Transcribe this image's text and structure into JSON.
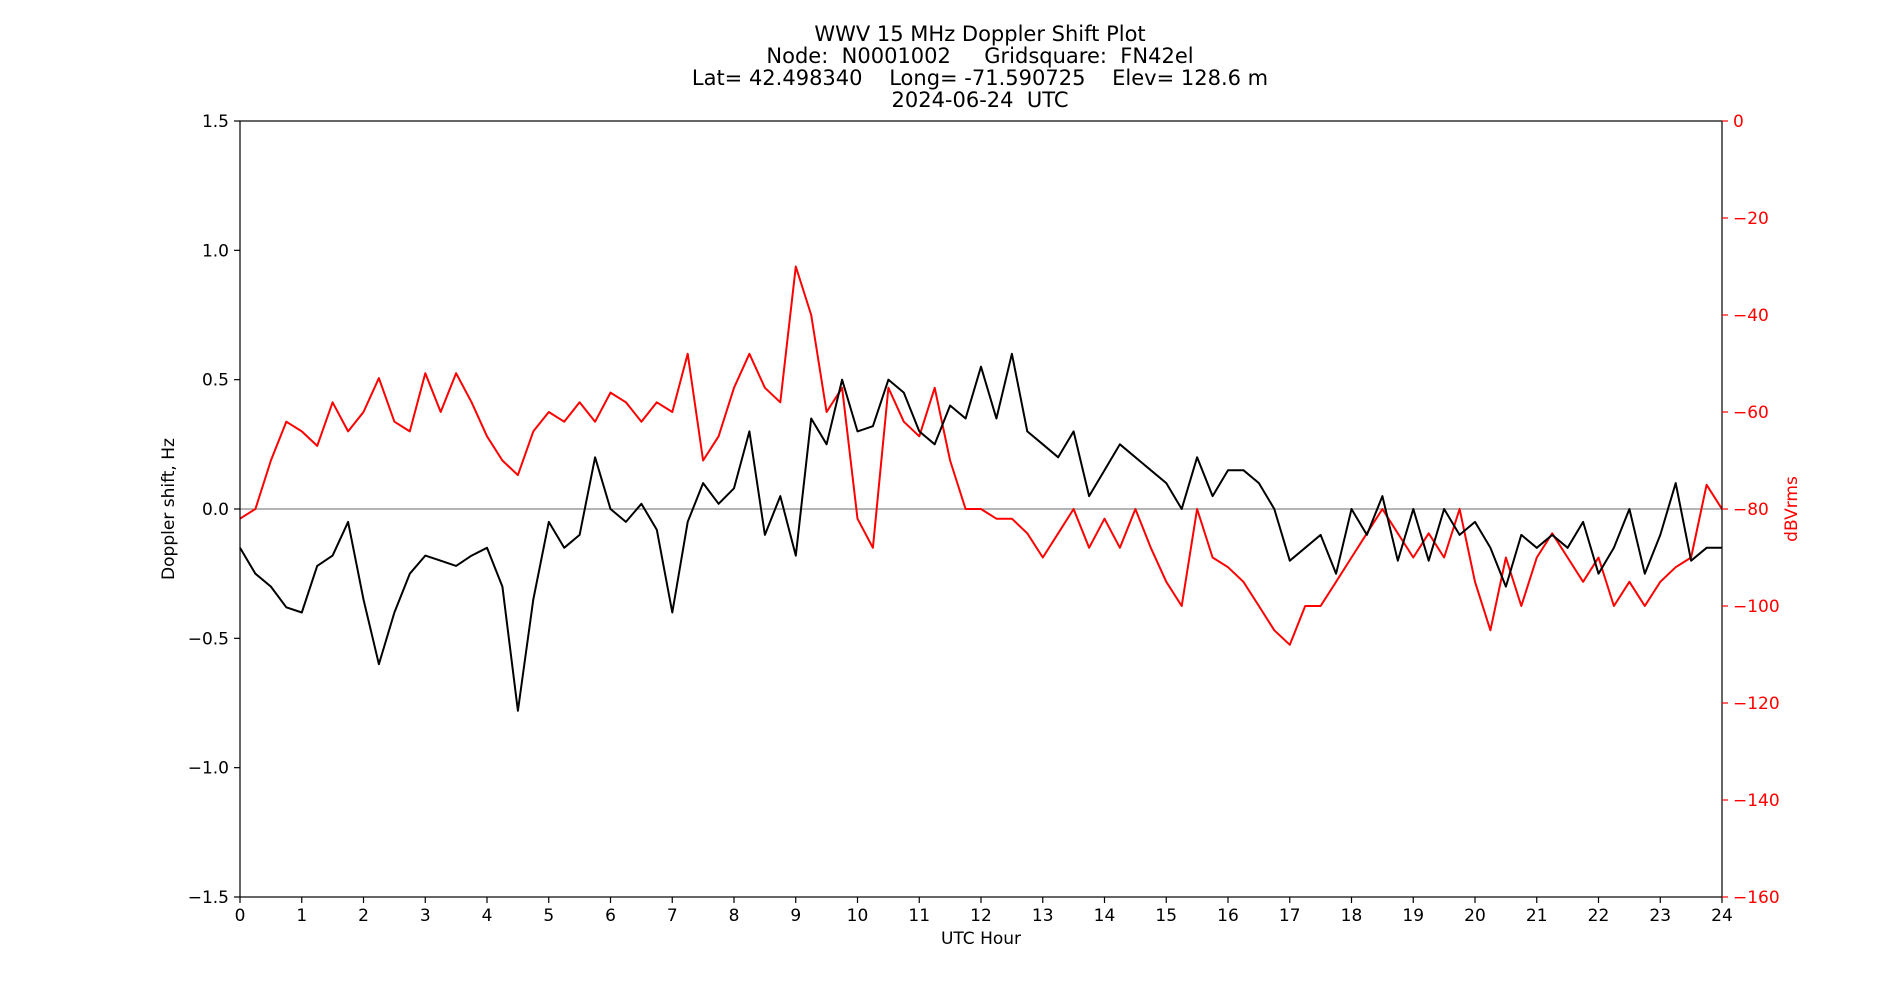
{
  "chart_data": {
    "type": "line",
    "title_lines": [
      "WWV 15 MHz Doppler Shift Plot",
      "Node:  N0001002     Gridsquare:  FN42el",
      "Lat= 42.498340    Long= -71.590725    Elev= 128.6 m",
      "2024-06-24  UTC"
    ],
    "xlabel": "UTC Hour",
    "ylabel_left": "Doppler shift, Hz",
    "ylabel_right": "dBVrms",
    "xlim": [
      0,
      24
    ],
    "ylim_left": [
      -1.5,
      1.5
    ],
    "ylim_right": [
      -160,
      0
    ],
    "x_ticks": [
      "0",
      "1",
      "2",
      "3",
      "4",
      "5",
      "6",
      "7",
      "8",
      "9",
      "10",
      "11",
      "12",
      "13",
      "14",
      "15",
      "16",
      "17",
      "18",
      "19",
      "20",
      "21",
      "22",
      "23",
      "24"
    ],
    "y_left_ticks": [
      "−1.5",
      "−1.0",
      "−0.5",
      "0.0",
      "0.5",
      "1.0",
      "1.5"
    ],
    "y_right_ticks": [
      "−160",
      "−140",
      "−120",
      "−100",
      "−80",
      "−60",
      "−40",
      "−20",
      "0"
    ],
    "grid": false,
    "zero_line": 0,
    "colors": {
      "doppler": "#000000",
      "power": "#ff0000",
      "zero_line": "#888888"
    },
    "series": [
      {
        "axis": "left",
        "color": "#000000",
        "x": [
          0,
          0.25,
          0.5,
          0.75,
          1,
          1.25,
          1.5,
          1.75,
          2,
          2.25,
          2.5,
          2.75,
          3,
          3.25,
          3.5,
          3.75,
          4,
          4.25,
          4.5,
          4.75,
          5,
          5.25,
          5.5,
          5.75,
          6,
          6.25,
          6.5,
          6.75,
          7,
          7.25,
          7.5,
          7.75,
          8,
          8.25,
          8.5,
          8.75,
          9,
          9.25,
          9.5,
          9.75,
          10,
          10.25,
          10.5,
          10.75,
          11,
          11.25,
          11.5,
          11.75,
          12,
          12.25,
          12.5,
          12.75,
          13,
          13.25,
          13.5,
          13.75,
          14,
          14.25,
          14.5,
          14.75,
          15,
          15.25,
          15.5,
          15.75,
          16,
          16.25,
          16.5,
          16.75,
          17,
          17.25,
          17.5,
          17.75,
          18,
          18.25,
          18.5,
          18.75,
          19,
          19.25,
          19.5,
          19.75,
          20,
          20.25,
          20.5,
          20.75,
          21,
          21.25,
          21.5,
          21.75,
          22,
          22.25,
          22.5,
          22.75,
          23,
          23.25,
          23.5,
          23.75,
          24
        ],
        "values": [
          -0.15,
          -0.25,
          -0.3,
          -0.38,
          -0.4,
          -0.22,
          -0.18,
          -0.05,
          -0.35,
          -0.6,
          -0.4,
          -0.25,
          -0.18,
          -0.2,
          -0.22,
          -0.18,
          -0.15,
          -0.3,
          -0.78,
          -0.35,
          -0.05,
          -0.15,
          -0.1,
          0.2,
          0.0,
          -0.05,
          0.02,
          -0.08,
          -0.4,
          -0.05,
          0.1,
          0.02,
          0.08,
          0.3,
          -0.1,
          0.05,
          -0.18,
          0.35,
          0.25,
          0.5,
          0.3,
          0.32,
          0.5,
          0.45,
          0.3,
          0.25,
          0.4,
          0.35,
          0.55,
          0.35,
          0.6,
          0.3,
          0.25,
          0.2,
          0.3,
          0.05,
          0.15,
          0.25,
          0.2,
          0.15,
          0.1,
          0.0,
          0.2,
          0.05,
          0.15,
          0.15,
          0.1,
          0.0,
          -0.2,
          -0.15,
          -0.1,
          -0.25,
          0.0,
          -0.1,
          0.05,
          -0.2,
          0.0,
          -0.2,
          0.0,
          -0.1,
          -0.05,
          -0.15,
          -0.3,
          -0.1,
          -0.15,
          -0.1,
          -0.15,
          -0.05,
          -0.25,
          -0.15,
          0.0,
          -0.25,
          -0.1,
          0.1,
          -0.2,
          -0.15,
          -0.15
        ]
      },
      {
        "axis": "right",
        "color": "#ff0000",
        "x": [
          0,
          0.25,
          0.5,
          0.75,
          1,
          1.25,
          1.5,
          1.75,
          2,
          2.25,
          2.5,
          2.75,
          3,
          3.25,
          3.5,
          3.75,
          4,
          4.25,
          4.5,
          4.75,
          5,
          5.25,
          5.5,
          5.75,
          6,
          6.25,
          6.5,
          6.75,
          7,
          7.25,
          7.5,
          7.75,
          8,
          8.25,
          8.5,
          8.75,
          9,
          9.25,
          9.5,
          9.75,
          10,
          10.25,
          10.5,
          10.75,
          11,
          11.25,
          11.5,
          11.75,
          12,
          12.25,
          12.5,
          12.75,
          13,
          13.25,
          13.5,
          13.75,
          14,
          14.25,
          14.5,
          14.75,
          15,
          15.25,
          15.5,
          15.75,
          16,
          16.25,
          16.5,
          16.75,
          17,
          17.25,
          17.5,
          17.75,
          18,
          18.25,
          18.5,
          18.75,
          19,
          19.25,
          19.5,
          19.75,
          20,
          20.25,
          20.5,
          20.75,
          21,
          21.25,
          21.5,
          21.75,
          22,
          22.25,
          22.5,
          22.75,
          23,
          23.25,
          23.5,
          23.75,
          24
        ],
        "values": [
          -82,
          -80,
          -70,
          -62,
          -64,
          -67,
          -58,
          -64,
          -60,
          -53,
          -62,
          -64,
          -52,
          -60,
          -52,
          -58,
          -65,
          -70,
          -73,
          -64,
          -60,
          -62,
          -58,
          -62,
          -56,
          -58,
          -62,
          -58,
          -60,
          -48,
          -70,
          -65,
          -55,
          -48,
          -55,
          -58,
          -30,
          -40,
          -60,
          -55,
          -82,
          -88,
          -55,
          -62,
          -65,
          -55,
          -70,
          -80,
          -80,
          -82,
          -82,
          -85,
          -90,
          -85,
          -80,
          -88,
          -82,
          -88,
          -80,
          -88,
          -95,
          -100,
          -80,
          -90,
          -92,
          -95,
          -100,
          -105,
          -108,
          -100,
          -100,
          -95,
          -90,
          -85,
          -80,
          -85,
          -90,
          -85,
          -90,
          -80,
          -95,
          -105,
          -90,
          -100,
          -90,
          -85,
          -90,
          -95,
          -90,
          -100,
          -95,
          -100,
          -95,
          -92,
          -90,
          -75,
          -80
        ]
      }
    ]
  }
}
